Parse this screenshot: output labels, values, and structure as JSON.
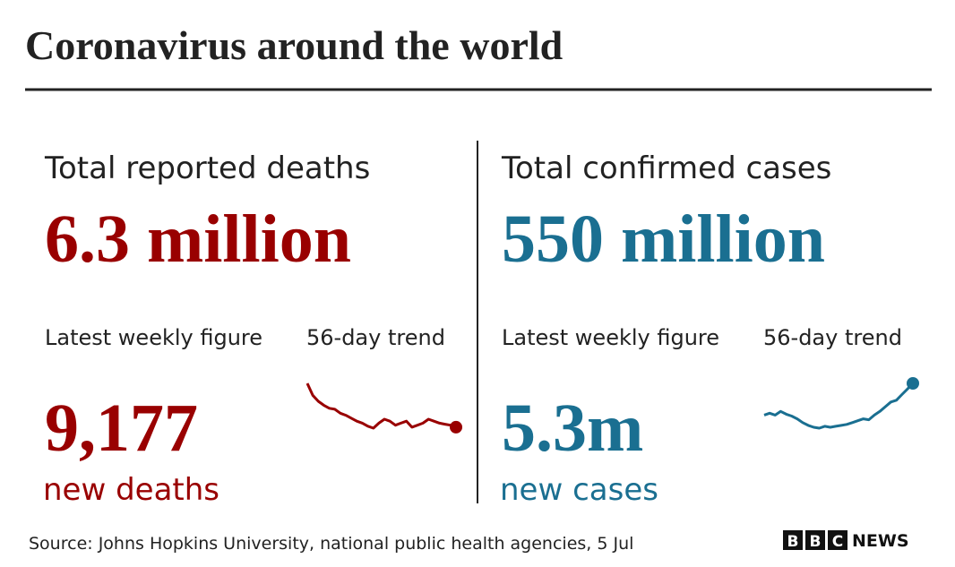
{
  "title": "Coronavirus around the world",
  "panels": [
    {
      "heading": "Total reported deaths",
      "total": "6.3 million",
      "weekly_label": "Latest weekly figure",
      "trend_label": "56-day trend",
      "weekly_value": "9,177",
      "weekly_caption": "new deaths",
      "color": "#990000",
      "trend": [
        70,
        58,
        52,
        48,
        45,
        44,
        40,
        38,
        35,
        32,
        30,
        27,
        25,
        30,
        34,
        32,
        28,
        30,
        32,
        26,
        28,
        30,
        34,
        32,
        30,
        29,
        28,
        26
      ]
    },
    {
      "heading": "Total confirmed cases",
      "total": "550 million",
      "weekly_label": "Latest weekly figure",
      "trend_label": "56-day trend",
      "weekly_value": "5.3m",
      "weekly_caption": "new cases",
      "color": "#1a6f91",
      "trend": [
        38,
        40,
        38,
        42,
        39,
        37,
        34,
        30,
        27,
        25,
        24,
        26,
        25,
        26,
        27,
        28,
        30,
        32,
        34,
        33,
        38,
        42,
        47,
        52,
        54,
        60,
        66,
        72
      ]
    }
  ],
  "source": "Source: Johns Hopkins University, national public health agencies, 5 Jul",
  "logo": {
    "letters": [
      "B",
      "B",
      "C"
    ],
    "news": "NEWS"
  }
}
